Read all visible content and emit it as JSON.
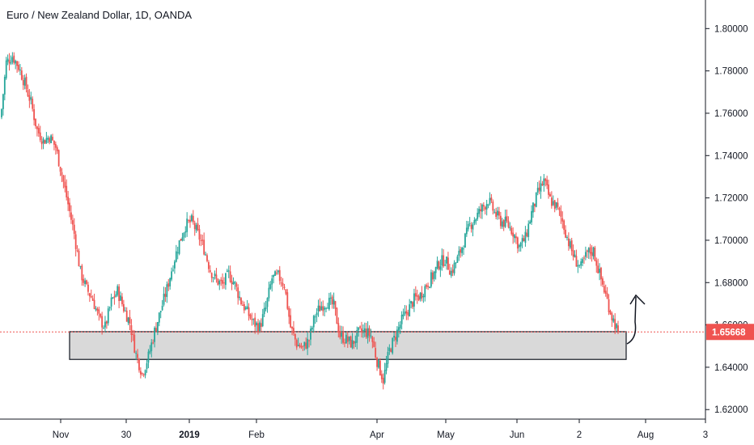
{
  "chart_data": {
    "type": "candlestick",
    "title": "Euro / New Zealand Dollar, 1D, OANDA",
    "x_tick_labels": [
      "Nov",
      "30",
      "2019",
      "Feb",
      "Apr",
      "May",
      "Jun",
      "2",
      "Aug",
      "3"
    ],
    "y_tick_labels": [
      "1.80000",
      "1.78000",
      "1.76000",
      "1.74000",
      "1.72000",
      "1.70000",
      "1.68000",
      "1.66000",
      "1.64000",
      "1.62000"
    ],
    "ylim": [
      1.6155,
      1.8135
    ],
    "last_price": "1.65668",
    "up_color": "#26a69a",
    "down_color": "#ef5350",
    "support_zone": {
      "top": 1.6568,
      "bottom": 1.6437
    },
    "close_path": [
      [
        0,
        1.762
      ],
      [
        3,
        1.784
      ],
      [
        7,
        1.787
      ],
      [
        11,
        1.782
      ],
      [
        15,
        1.774
      ],
      [
        19,
        1.765
      ],
      [
        23,
        1.752
      ],
      [
        27,
        1.747
      ],
      [
        31,
        1.749
      ],
      [
        35,
        1.744
      ],
      [
        39,
        1.731
      ],
      [
        43,
        1.717
      ],
      [
        47,
        1.703
      ],
      [
        51,
        1.685
      ],
      [
        55,
        1.677
      ],
      [
        59,
        1.672
      ],
      [
        63,
        1.663
      ],
      [
        67,
        1.659
      ],
      [
        71,
        1.671
      ],
      [
        75,
        1.676
      ],
      [
        79,
        1.668
      ],
      [
        83,
        1.661
      ],
      [
        87,
        1.646
      ],
      [
        91,
        1.637
      ],
      [
        95,
        1.645
      ],
      [
        99,
        1.657
      ],
      [
        103,
        1.667
      ],
      [
        107,
        1.677
      ],
      [
        111,
        1.689
      ],
      [
        115,
        1.699
      ],
      [
        119,
        1.707
      ],
      [
        123,
        1.709
      ],
      [
        127,
        1.703
      ],
      [
        131,
        1.696
      ],
      [
        135,
        1.686
      ],
      [
        139,
        1.681
      ],
      [
        143,
        1.679
      ],
      [
        147,
        1.684
      ],
      [
        151,
        1.679
      ],
      [
        155,
        1.671
      ],
      [
        159,
        1.666
      ],
      [
        163,
        1.661
      ],
      [
        167,
        1.659
      ],
      [
        171,
        1.668
      ],
      [
        175,
        1.682
      ],
      [
        179,
        1.683
      ],
      [
        183,
        1.679
      ],
      [
        187,
        1.659
      ],
      [
        191,
        1.651
      ],
      [
        195,
        1.649
      ],
      [
        199,
        1.653
      ],
      [
        203,
        1.665
      ],
      [
        207,
        1.669
      ],
      [
        211,
        1.671
      ],
      [
        215,
        1.669
      ],
      [
        219,
        1.655
      ],
      [
        223,
        1.653
      ],
      [
        227,
        1.651
      ],
      [
        231,
        1.656
      ],
      [
        235,
        1.657
      ],
      [
        239,
        1.655
      ],
      [
        243,
        1.643
      ],
      [
        247,
        1.634
      ],
      [
        251,
        1.648
      ],
      [
        255,
        1.655
      ],
      [
        259,
        1.662
      ],
      [
        263,
        1.667
      ],
      [
        267,
        1.672
      ],
      [
        271,
        1.674
      ],
      [
        275,
        1.679
      ],
      [
        279,
        1.683
      ],
      [
        283,
        1.689
      ],
      [
        287,
        1.691
      ],
      [
        291,
        1.685
      ],
      [
        295,
        1.691
      ],
      [
        299,
        1.699
      ],
      [
        303,
        1.707
      ],
      [
        307,
        1.711
      ],
      [
        311,
        1.715
      ],
      [
        315,
        1.719
      ],
      [
        319,
        1.713
      ],
      [
        323,
        1.709
      ],
      [
        327,
        1.708
      ],
      [
        331,
        1.704
      ],
      [
        335,
        1.697
      ],
      [
        339,
        1.701
      ],
      [
        343,
        1.713
      ],
      [
        347,
        1.722
      ],
      [
        351,
        1.728
      ],
      [
        355,
        1.719
      ],
      [
        359,
        1.716
      ],
      [
        363,
        1.709
      ],
      [
        367,
        1.699
      ],
      [
        371,
        1.691
      ],
      [
        375,
        1.687
      ],
      [
        379,
        1.694
      ],
      [
        383,
        1.695
      ],
      [
        387,
        1.684
      ],
      [
        391,
        1.674
      ],
      [
        395,
        1.664
      ],
      [
        399,
        1.6567
      ]
    ],
    "series_span": [
      0,
      399
    ]
  }
}
